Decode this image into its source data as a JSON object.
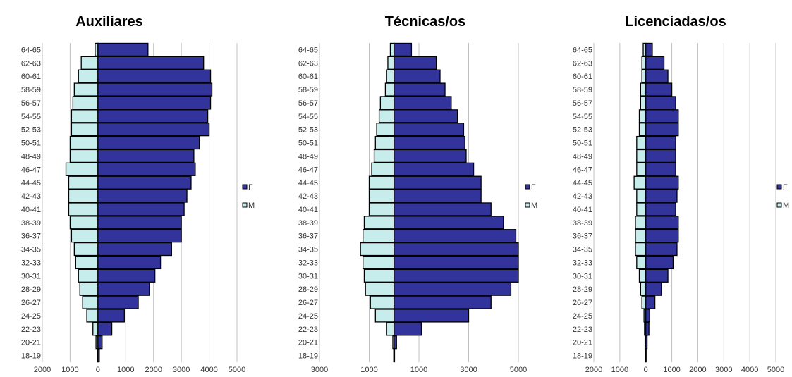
{
  "colors": {
    "female": "#33339c",
    "male": "#c7ecec",
    "edge": "#000000",
    "grid": "#c0c0c0"
  },
  "chart_data": [
    {
      "type": "bar",
      "title": "Auxiliares",
      "categories": [
        "18-19",
        "20-21",
        "22-23",
        "24-25",
        "26-27",
        "28-29",
        "30-31",
        "32-33",
        "34-35",
        "36-37",
        "38-39",
        "40-41",
        "42-43",
        "44-45",
        "46-47",
        "48-49",
        "50-51",
        "52-53",
        "54-55",
        "56-57",
        "58-59",
        "60-61",
        "62-63",
        "64-65"
      ],
      "series": [
        {
          "name": "F",
          "values": [
            50,
            150,
            500,
            950,
            1450,
            1850,
            2050,
            2250,
            2650,
            3000,
            3000,
            3100,
            3200,
            3350,
            3500,
            3450,
            3650,
            4000,
            3950,
            4050,
            4100,
            4050,
            3800,
            1800
          ]
        },
        {
          "name": "M",
          "values": [
            30,
            70,
            180,
            400,
            550,
            650,
            700,
            800,
            850,
            950,
            1000,
            1050,
            1050,
            1050,
            1150,
            1000,
            1000,
            950,
            950,
            900,
            850,
            700,
            600,
            100
          ]
        }
      ],
      "xlim": [
        -2000,
        5000
      ],
      "xticks": [
        -2000,
        -1000,
        0,
        1000,
        2000,
        3000,
        4000,
        5000
      ],
      "xtick_labels": [
        "2000",
        "1000",
        "0",
        "1000",
        "2000",
        "3000",
        "4000",
        "5000"
      ],
      "legend": [
        "F",
        "M"
      ]
    },
    {
      "type": "bar",
      "title": "Técnicas/os",
      "categories": [
        "18-19",
        "20-21",
        "22-23",
        "24-25",
        "26-27",
        "28-29",
        "30-31",
        "32-33",
        "34-35",
        "36-37",
        "38-39",
        "40-41",
        "42-43",
        "44-45",
        "46-47",
        "48-49",
        "50-51",
        "52-53",
        "54-55",
        "56-57",
        "58-59",
        "60-61",
        "62-63",
        "64-65"
      ],
      "series": [
        {
          "name": "F",
          "values": [
            20,
            100,
            1100,
            3000,
            3900,
            4700,
            5000,
            5000,
            5000,
            4900,
            4400,
            3900,
            3500,
            3500,
            3200,
            2900,
            2850,
            2800,
            2550,
            2300,
            2050,
            1850,
            1700,
            700
          ]
        },
        {
          "name": "M",
          "values": [
            10,
            50,
            300,
            750,
            950,
            1150,
            1200,
            1250,
            1350,
            1250,
            1200,
            1000,
            1000,
            1000,
            900,
            800,
            750,
            700,
            600,
            550,
            350,
            300,
            250,
            150
          ]
        }
      ],
      "xlim": [
        -3000,
        5000
      ],
      "xticks": [
        -3000,
        -1000,
        1000,
        3000,
        5000
      ],
      "xtick_labels": [
        "3000",
        "1000",
        "1000",
        "3000",
        "5000"
      ],
      "legend": [
        "F",
        "M"
      ]
    },
    {
      "type": "bar",
      "title": "Licenciadas/os",
      "categories": [
        "18-19",
        "20-21",
        "22-23",
        "24-25",
        "26-27",
        "28-29",
        "30-31",
        "32-33",
        "34-35",
        "36-37",
        "38-39",
        "40-41",
        "42-43",
        "44-45",
        "46-47",
        "48-49",
        "50-51",
        "52-53",
        "54-55",
        "56-57",
        "58-59",
        "60-61",
        "62-63",
        "64-65"
      ],
      "series": [
        {
          "name": "F",
          "values": [
            10,
            50,
            120,
            150,
            350,
            600,
            850,
            1050,
            1200,
            1250,
            1250,
            1150,
            1200,
            1250,
            1150,
            1150,
            1150,
            1250,
            1250,
            1150,
            1000,
            850,
            700,
            250
          ]
        },
        {
          "name": "M",
          "values": [
            10,
            30,
            50,
            70,
            150,
            200,
            250,
            350,
            400,
            400,
            400,
            350,
            350,
            450,
            350,
            350,
            350,
            250,
            250,
            200,
            200,
            150,
            150,
            100
          ]
        }
      ],
      "xlim": [
        -2000,
        5000
      ],
      "xticks": [
        -2000,
        -1000,
        0,
        1000,
        2000,
        3000,
        4000,
        5000
      ],
      "xtick_labels": [
        "2000",
        "1000",
        "0",
        "1000",
        "2000",
        "3000",
        "4000",
        "5000"
      ],
      "legend": [
        "F",
        "M"
      ]
    }
  ]
}
